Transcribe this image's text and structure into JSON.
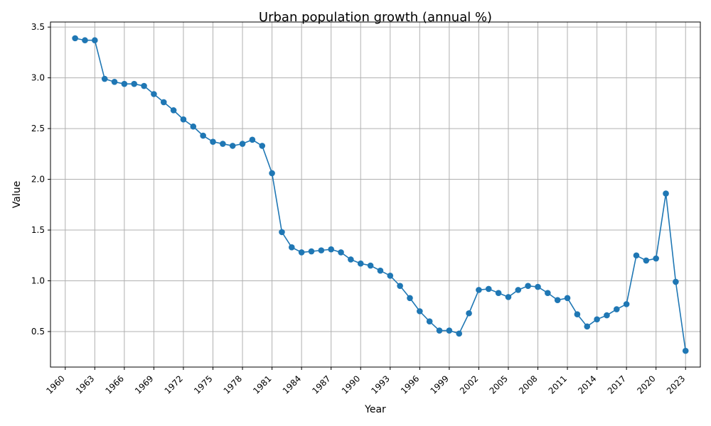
{
  "chart_data": {
    "type": "line",
    "title": "Urban population growth (annual %)",
    "xlabel": "Year",
    "ylabel": "Value",
    "xlim": [
      1958.5,
      2024.5
    ],
    "ylim": [
      0.15,
      3.55
    ],
    "x_ticks": [
      1960,
      1963,
      1966,
      1969,
      1972,
      1975,
      1978,
      1981,
      1984,
      1987,
      1990,
      1993,
      1996,
      1999,
      2002,
      2005,
      2008,
      2011,
      2014,
      2017,
      2020,
      2023
    ],
    "y_ticks": [
      "0.5",
      "1.0",
      "1.5",
      "2.0",
      "2.5",
      "3.0",
      "3.5"
    ],
    "grid": true,
    "color": "#1f77b4",
    "marker": "circle",
    "series": [
      {
        "x": [
          1961,
          1962,
          1963,
          1964,
          1965,
          1966,
          1967,
          1968,
          1969,
          1970,
          1971,
          1972,
          1973,
          1974,
          1975,
          1976,
          1977,
          1978,
          1979,
          1980,
          1981,
          1982,
          1983,
          1984,
          1985,
          1986,
          1987,
          1988,
          1989,
          1990,
          1991,
          1992,
          1993,
          1994,
          1995,
          1996,
          1997,
          1998,
          1999,
          2000,
          2001,
          2002,
          2003,
          2004,
          2005,
          2006,
          2007,
          2008,
          2009,
          2010,
          2011,
          2012,
          2013,
          2014,
          2015,
          2016,
          2017,
          2018,
          2019,
          2020,
          2021,
          2022,
          2023
        ],
        "values": [
          3.39,
          3.37,
          3.37,
          2.99,
          2.96,
          2.94,
          2.94,
          2.92,
          2.84,
          2.76,
          2.68,
          2.59,
          2.52,
          2.43,
          2.37,
          2.35,
          2.33,
          2.35,
          2.39,
          2.33,
          2.06,
          1.48,
          1.33,
          1.28,
          1.29,
          1.3,
          1.31,
          1.28,
          1.21,
          1.17,
          1.15,
          1.1,
          1.05,
          0.95,
          0.83,
          0.7,
          0.6,
          0.51,
          0.51,
          0.48,
          0.68,
          0.91,
          0.92,
          0.88,
          0.84,
          0.91,
          0.95,
          0.94,
          0.88,
          0.81,
          0.83,
          0.67,
          0.55,
          0.62,
          0.66,
          0.72,
          0.77,
          1.25,
          1.2,
          1.22,
          1.86,
          0.99,
          0.31
        ]
      }
    ]
  }
}
